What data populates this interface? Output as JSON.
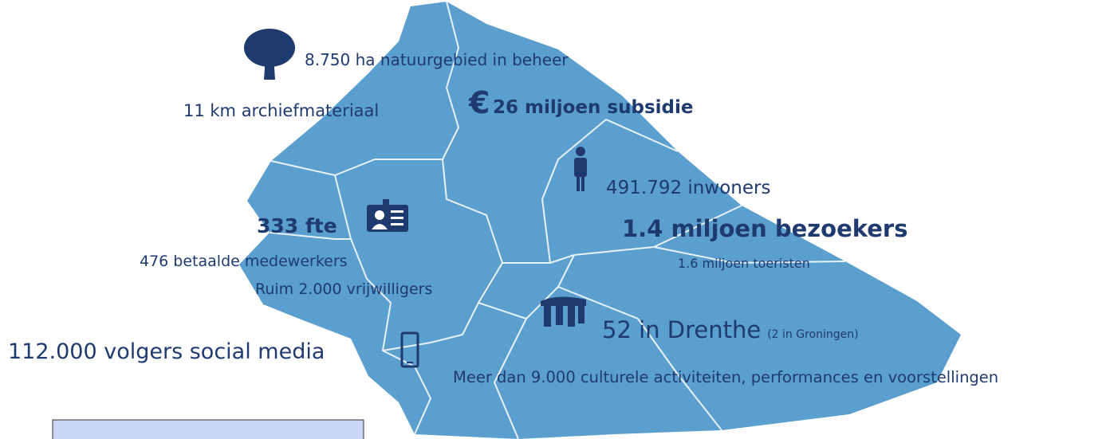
{
  "infographic": {
    "nature": "8.750 ha natuurgebied in beheer",
    "archive": "11 km archiefmateriaal",
    "euro": "€",
    "subsidy": "26 miljoen subsidie",
    "inhabitants": "491.792 inwoners",
    "fte": "333 fte",
    "visitors": "1.4 miljoen bezoekers",
    "employees": "476 betaalde medewerkers",
    "tourists": "1.6 miljoen toeristen",
    "volunteers": "Ruim 2.000 vrijwilligers",
    "drenthe": "52 in Drenthe",
    "groningen": "(2 in Groningen)",
    "social": "112.000 volgers social media",
    "activities": "Meer dan 9.000 culturele activiteiten, performances en voorstellingen"
  }
}
